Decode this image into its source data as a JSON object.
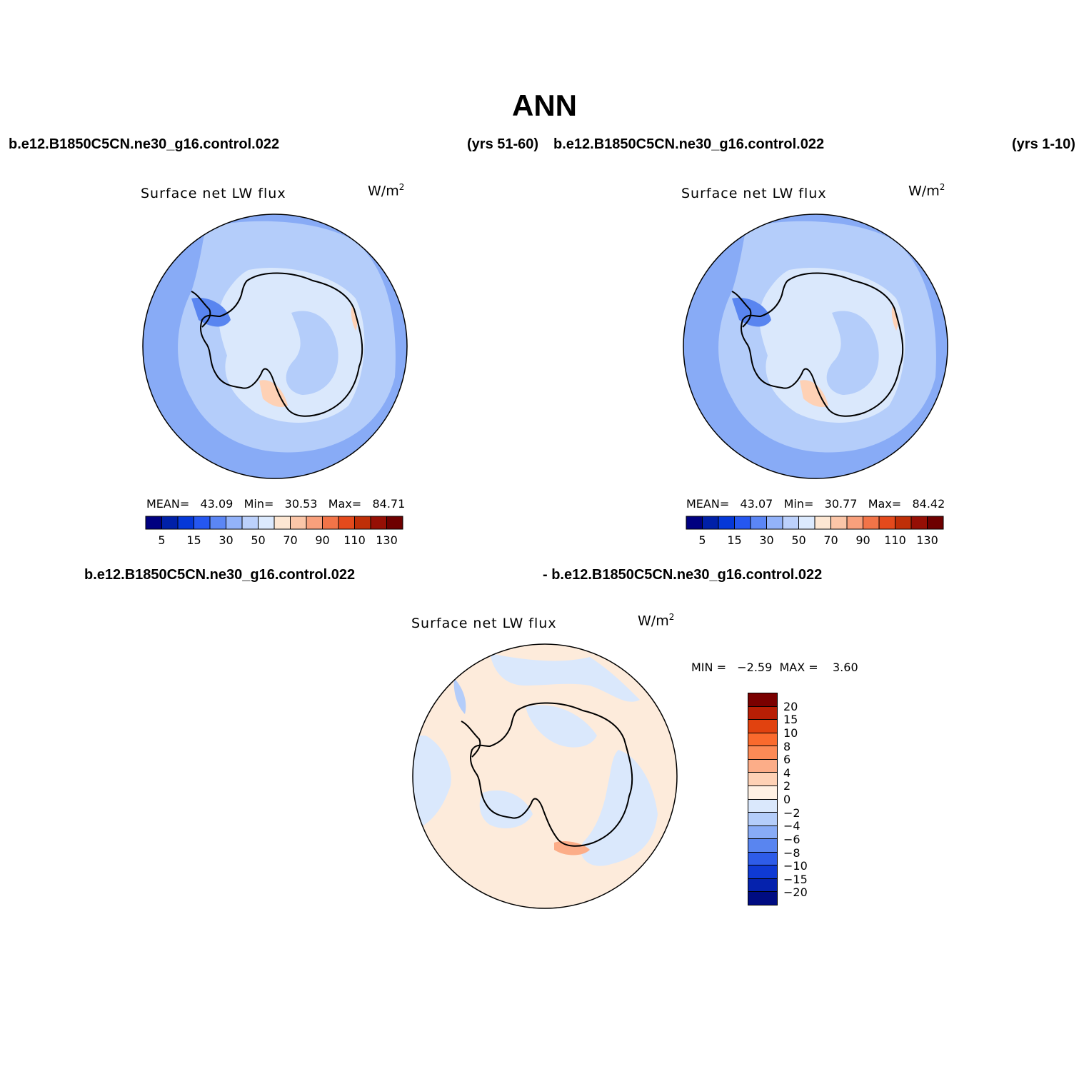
{
  "main_title": "ANN",
  "top_left": {
    "case_name": "b.e12.B1850C5CN.ne30_g16.control.022",
    "years": "(yrs 51-60)",
    "title": "Surface net LW flux",
    "units": "W/m",
    "units_exp": "2",
    "mean_label": "MEAN=",
    "mean": "43.09",
    "min_label": "Min=",
    "min": "30.53",
    "max_label": "Max=",
    "max": "84.71"
  },
  "top_right": {
    "case_name": "b.e12.B1850C5CN.ne30_g16.control.022",
    "years": "(yrs 1-10)",
    "title": "Surface net LW flux",
    "units": "W/m",
    "units_exp": "2",
    "mean_label": "MEAN=",
    "mean": "43.07",
    "min_label": "Min=",
    "min": "30.77",
    "max_label": "Max=",
    "max": "84.42"
  },
  "bottom": {
    "case_name": "b.e12.B1850C5CN.ne30_g16.control.022",
    "case_name_2": "- b.e12.B1850C5CN.ne30_g16.control.022",
    "title": "Surface net LW flux",
    "units": "W/m",
    "units_exp": "2",
    "minmax": "MIN =   −2.59  MAX =    3.60"
  },
  "horizontal_colorbar": {
    "colors": [
      "#000080",
      "#0020a8",
      "#0538d8",
      "#2557f0",
      "#5b86f5",
      "#93b3fa",
      "#bcd1fc",
      "#dceafe",
      "#fde7d3",
      "#fbc6a8",
      "#f8a07c",
      "#f27448",
      "#e44a1c",
      "#bf2f08",
      "#960f05",
      "#6e0000"
    ],
    "labels": [
      "5",
      "15",
      "30",
      "50",
      "70",
      "90",
      "110",
      "130"
    ]
  },
  "vertical_colorbar": {
    "colors": [
      "#7a0000",
      "#b81e05",
      "#e1420f",
      "#fa6a2d",
      "#fc8a56",
      "#fcad88",
      "#fed1b5",
      "#fff1e4",
      "#dae8fc",
      "#b4cdfa",
      "#88abf6",
      "#5985f0",
      "#2e5ce8",
      "#0f3ad4",
      "#0522ad",
      "#000c82"
    ],
    "labels": [
      "20",
      "15",
      "10",
      "8",
      "6",
      "4",
      "2",
      "0",
      "−2",
      "−4",
      "−6",
      "−8",
      "−10",
      "−15",
      "−20"
    ]
  }
}
